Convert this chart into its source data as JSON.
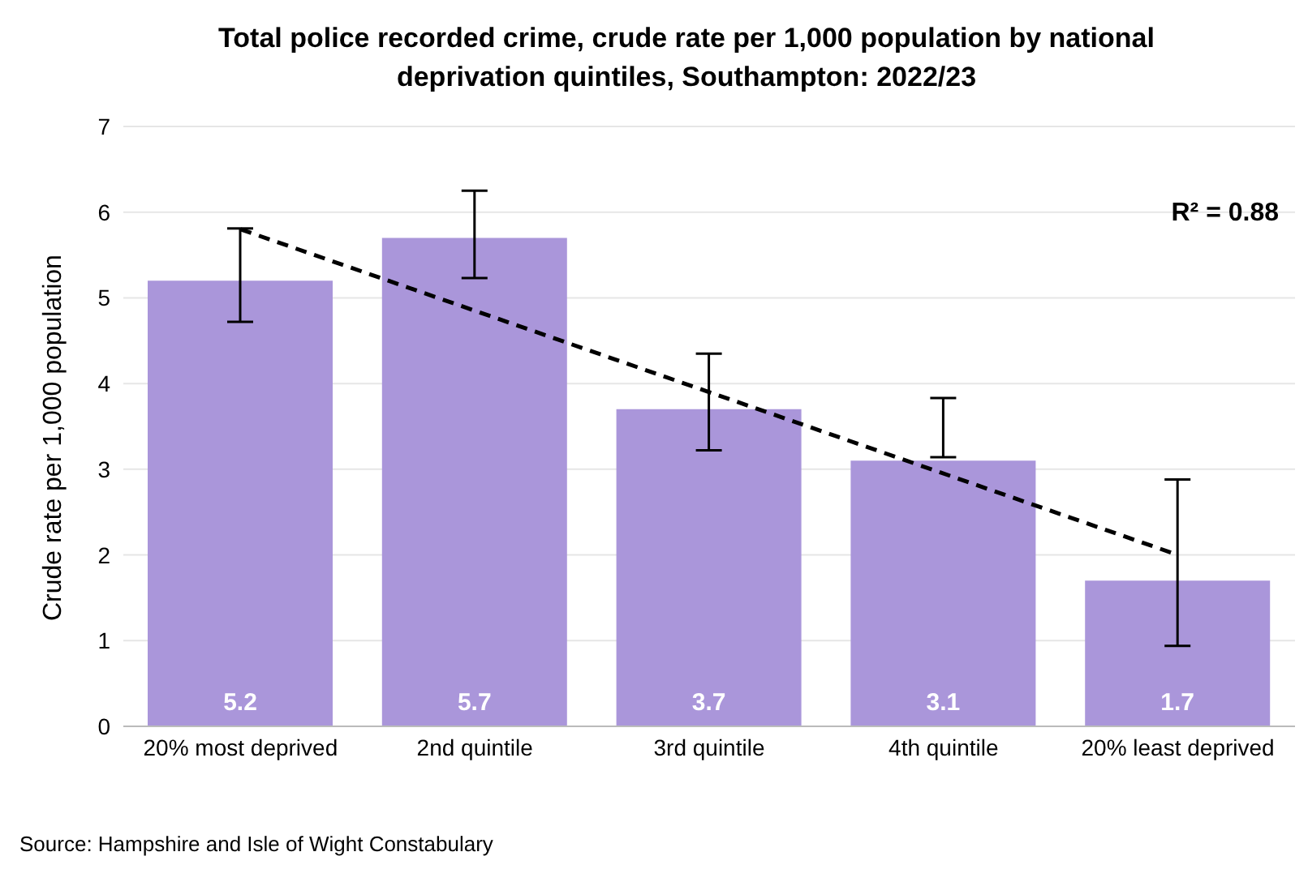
{
  "chart_data": {
    "type": "bar",
    "title": "Total police recorded crime, crude rate per 1,000 population by national deprivation quintiles, Southampton: 2022/23",
    "ylabel": "Crude rate per 1,000 population",
    "categories": [
      "20% most deprived",
      "2nd quintile",
      "3rd quintile",
      "4th quintile",
      "20% least deprived"
    ],
    "series": [
      {
        "color": "#aa96da",
        "values": [
          5.2,
          5.7,
          3.7,
          3.1,
          1.7
        ],
        "value_labels": [
          "5.2",
          "5.7",
          "3.7",
          "3.1",
          "1.7"
        ],
        "errors": [
          [
            4.72,
            5.81
          ],
          [
            5.23,
            6.25
          ],
          [
            3.22,
            4.35
          ],
          [
            3.14,
            3.83
          ],
          [
            0.94,
            2.88
          ]
        ]
      },
      {
        "type": "line",
        "color": "#000000",
        "line_style": "dashed",
        "marker": "none",
        "x": [
          "20% most deprived",
          "20% least deprived"
        ],
        "values": [
          5.8,
          2.0
        ]
      }
    ],
    "ylim": [
      0,
      7
    ],
    "yticks": [
      0,
      1,
      2,
      3,
      4,
      5,
      6,
      7
    ],
    "grid": "y",
    "legend": false,
    "annotations": [
      "R² = 0.88",
      "Source: Hampshire and Isle of Wight Constabulary"
    ]
  }
}
